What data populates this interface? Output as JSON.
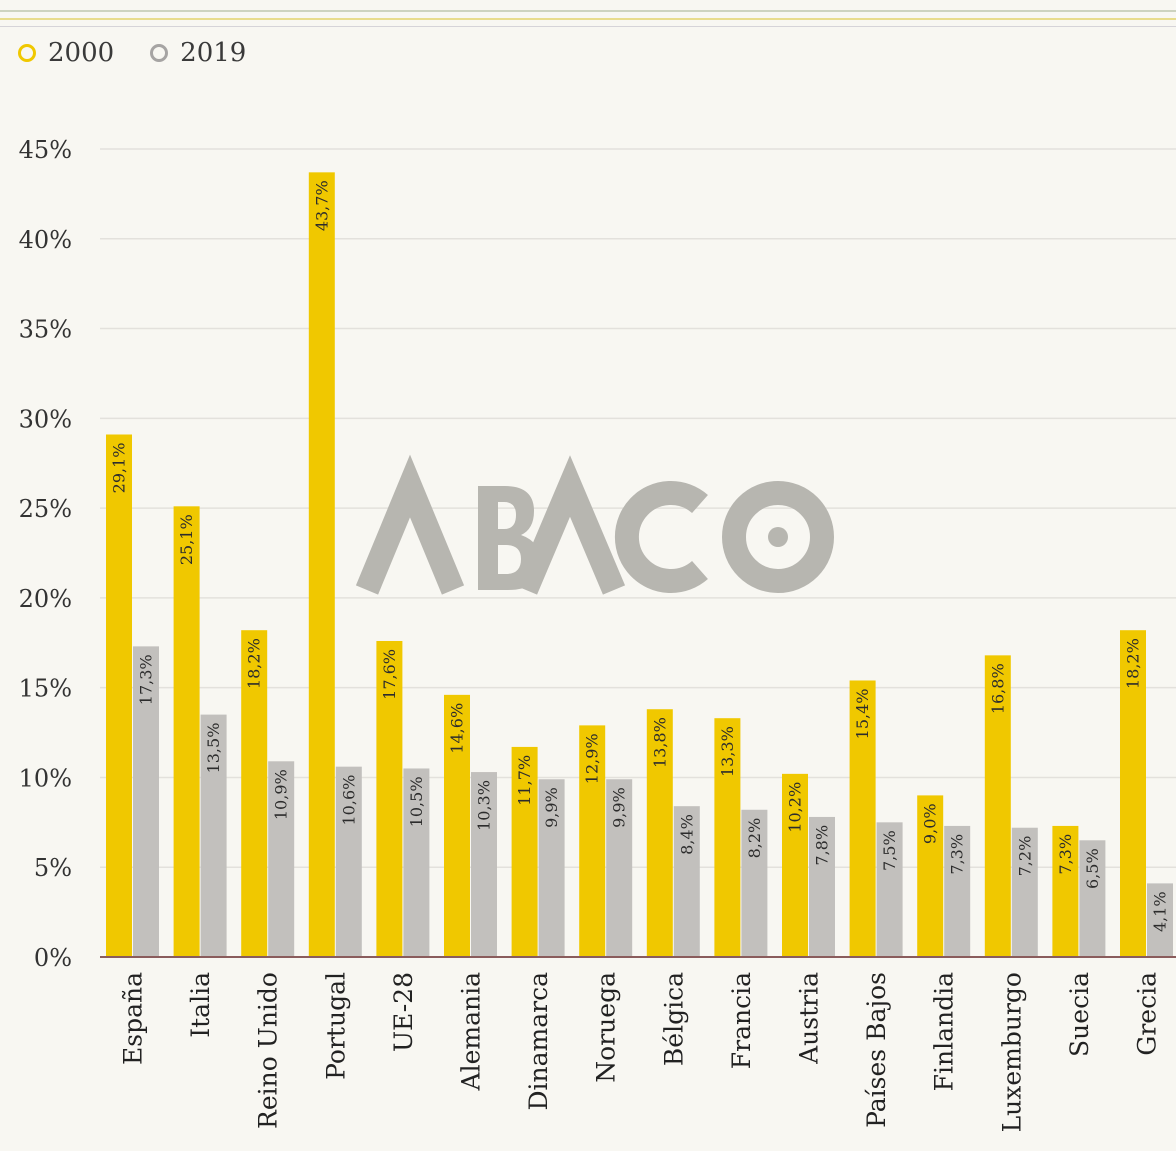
{
  "legend": [
    {
      "label": "2000",
      "color": "#f0c800"
    },
    {
      "label": "2019",
      "color": "#a6a4a3"
    }
  ],
  "watermark": {
    "text": "ABACO",
    "color": "#b7b6b0"
  },
  "colors": {
    "series_2000": "#f0c800",
    "series_2019": "#c2c0bd",
    "grid": "#e3e1dc",
    "axis": "#8a5c5c"
  },
  "chart_data": {
    "type": "bar",
    "title": "",
    "xlabel": "",
    "ylabel": "",
    "ylim": [
      0,
      45
    ],
    "yticks": [
      "0%",
      "5%",
      "10%",
      "15%",
      "20%",
      "25%",
      "30%",
      "35%",
      "40%",
      "45%"
    ],
    "grid": true,
    "legend_position": "top-left",
    "categories": [
      "España",
      "Italia",
      "Reino Unido",
      "Portugal",
      "UE-28",
      "Alemania",
      "Dinamarca",
      "Noruega",
      "Bélgica",
      "Francia",
      "Austria",
      "Países Bajos",
      "Finlandia",
      "Luxemburgo",
      "Suecia",
      "Grecia"
    ],
    "series": [
      {
        "name": "2000",
        "values": [
          29.1,
          25.1,
          18.2,
          43.7,
          17.6,
          14.6,
          11.7,
          12.9,
          13.8,
          13.3,
          10.2,
          15.4,
          9.0,
          16.8,
          7.3,
          18.2
        ],
        "labels": [
          "29,1%",
          "25,1%",
          "18,2%",
          "43,7%",
          "17,6%",
          "14,6%",
          "11,7%",
          "12,9%",
          "13,8%",
          "13,3%",
          "10,2%",
          "15,4%",
          "9,0%",
          "16,8%",
          "7,3%",
          "18,2%"
        ]
      },
      {
        "name": "2019",
        "values": [
          17.3,
          13.5,
          10.9,
          10.6,
          10.5,
          10.3,
          9.9,
          9.9,
          8.4,
          8.2,
          7.8,
          7.5,
          7.3,
          7.2,
          6.5,
          4.1
        ],
        "labels": [
          "17,3%",
          "13,5%",
          "10,9%",
          "10,6%",
          "10,5%",
          "10,3%",
          "9,9%",
          "9,9%",
          "8,4%",
          "8,2%",
          "7,8%",
          "7,5%",
          "7,3%",
          "7,2%",
          "6,5%",
          "4,1%"
        ]
      }
    ]
  }
}
